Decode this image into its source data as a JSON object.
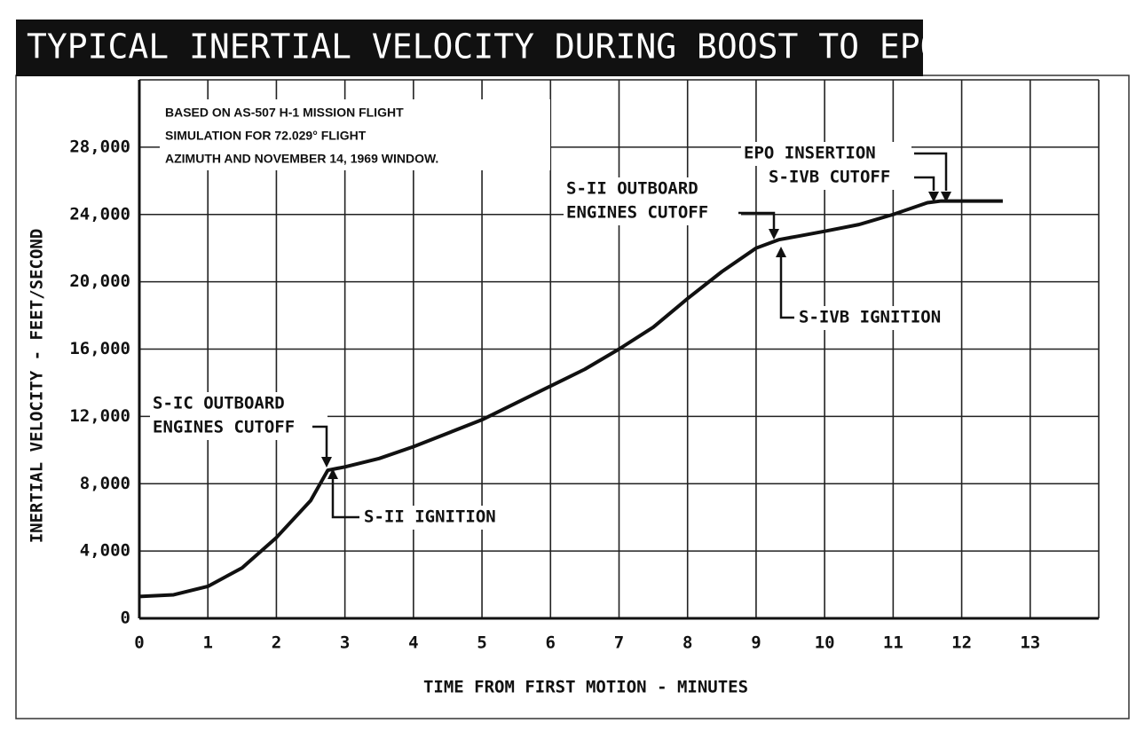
{
  "chart_data": {
    "type": "line",
    "title": "TYPICAL INERTIAL VELOCITY DURING BOOST TO EPO",
    "xlabel": "TIME FROM FIRST MOTION - MINUTES",
    "ylabel": "INERTIAL VELOCITY - FEET/SECOND",
    "note": [
      "BASED ON AS-507 H-1 MISSION FLIGHT",
      "SIMULATION FOR 72.029° FLIGHT",
      "AZIMUTH AND NOVEMBER 14, 1969 WINDOW."
    ],
    "annotations": [
      {
        "lines": [
          "S-IC OUTBOARD",
          "ENGINES CUTOFF"
        ]
      },
      {
        "lines": [
          "S-II IGNITION"
        ]
      },
      {
        "lines": [
          "S-II OUTBOARD",
          "ENGINES CUTOFF"
        ]
      },
      {
        "lines": [
          "S-IVB IGNITION"
        ]
      },
      {
        "lines": [
          "EPO INSERTION"
        ]
      },
      {
        "lines": [
          "S-IVB CUTOFF"
        ]
      }
    ],
    "x": [
      0,
      0.5,
      1,
      1.5,
      2,
      2.5,
      2.75,
      3,
      3.5,
      4,
      4.5,
      5,
      5.5,
      6,
      6.5,
      7,
      7.5,
      8,
      8.5,
      9,
      9.33,
      9.6,
      10,
      10.5,
      11,
      11.5,
      11.7,
      12,
      12.6
    ],
    "series": [
      {
        "name": "Inertial velocity",
        "color": "#111111",
        "values": [
          1300,
          1400,
          1900,
          3000,
          4800,
          7000,
          8800,
          9000,
          9500,
          10200,
          11000,
          11800,
          12800,
          13800,
          14800,
          16000,
          17300,
          19000,
          20600,
          22000,
          22500,
          22700,
          23000,
          23400,
          24000,
          24700,
          24800,
          24800,
          24800
        ]
      }
    ],
    "xlim": [
      0,
      14
    ],
    "ylim": [
      0,
      32000
    ],
    "xticks": [
      0,
      1,
      2,
      3,
      4,
      5,
      6,
      7,
      8,
      9,
      10,
      11,
      12,
      13
    ],
    "yticks": [
      0,
      {
        "value": 4000,
        "label": "4,000"
      },
      {
        "value": 8000,
        "label": "8,000"
      },
      {
        "value": 12000,
        "label": "12,000"
      },
      {
        "value": 16000,
        "label": "16,000"
      },
      {
        "value": 20000,
        "label": "20,000"
      },
      {
        "value": 24000,
        "label": "24,000"
      },
      {
        "value": 28000,
        "label": "28,000"
      }
    ],
    "grid": true
  }
}
